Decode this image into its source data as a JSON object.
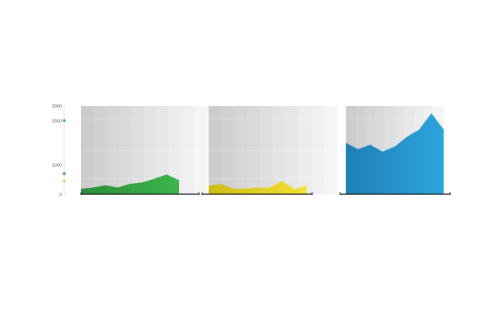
{
  "chart_data": {
    "type": "area",
    "title": "",
    "xlabel": "",
    "ylabel": "",
    "ylim": [
      0,
      3000
    ],
    "yticks": [
      0,
      1000,
      2500,
      3000
    ],
    "ytick_labels": [
      "0",
      "1000",
      "2500",
      "3000"
    ],
    "grid": false,
    "legend": "none",
    "markers": [
      {
        "value": 2500,
        "color": "#3aa6d8"
      },
      {
        "value": 700,
        "color": "#3aa84a"
      },
      {
        "value": 450,
        "color": "#e8d52a"
      }
    ],
    "panels": [
      {
        "color_start": "#2a8f3a",
        "color_end": "#3cb44b",
        "values": [
          180,
          230,
          300,
          230,
          350,
          400,
          530,
          670,
          480
        ]
      },
      {
        "color_start": "#cdbb10",
        "color_end": "#f3e232",
        "values": [
          280,
          350,
          190,
          190,
          230,
          230,
          450,
          170,
          300
        ]
      },
      {
        "color_start": "#1f7fb5",
        "color_end": "#2aa6de",
        "values": [
          1750,
          1530,
          1680,
          1450,
          1620,
          1950,
          2200,
          2750,
          2200
        ]
      }
    ]
  }
}
